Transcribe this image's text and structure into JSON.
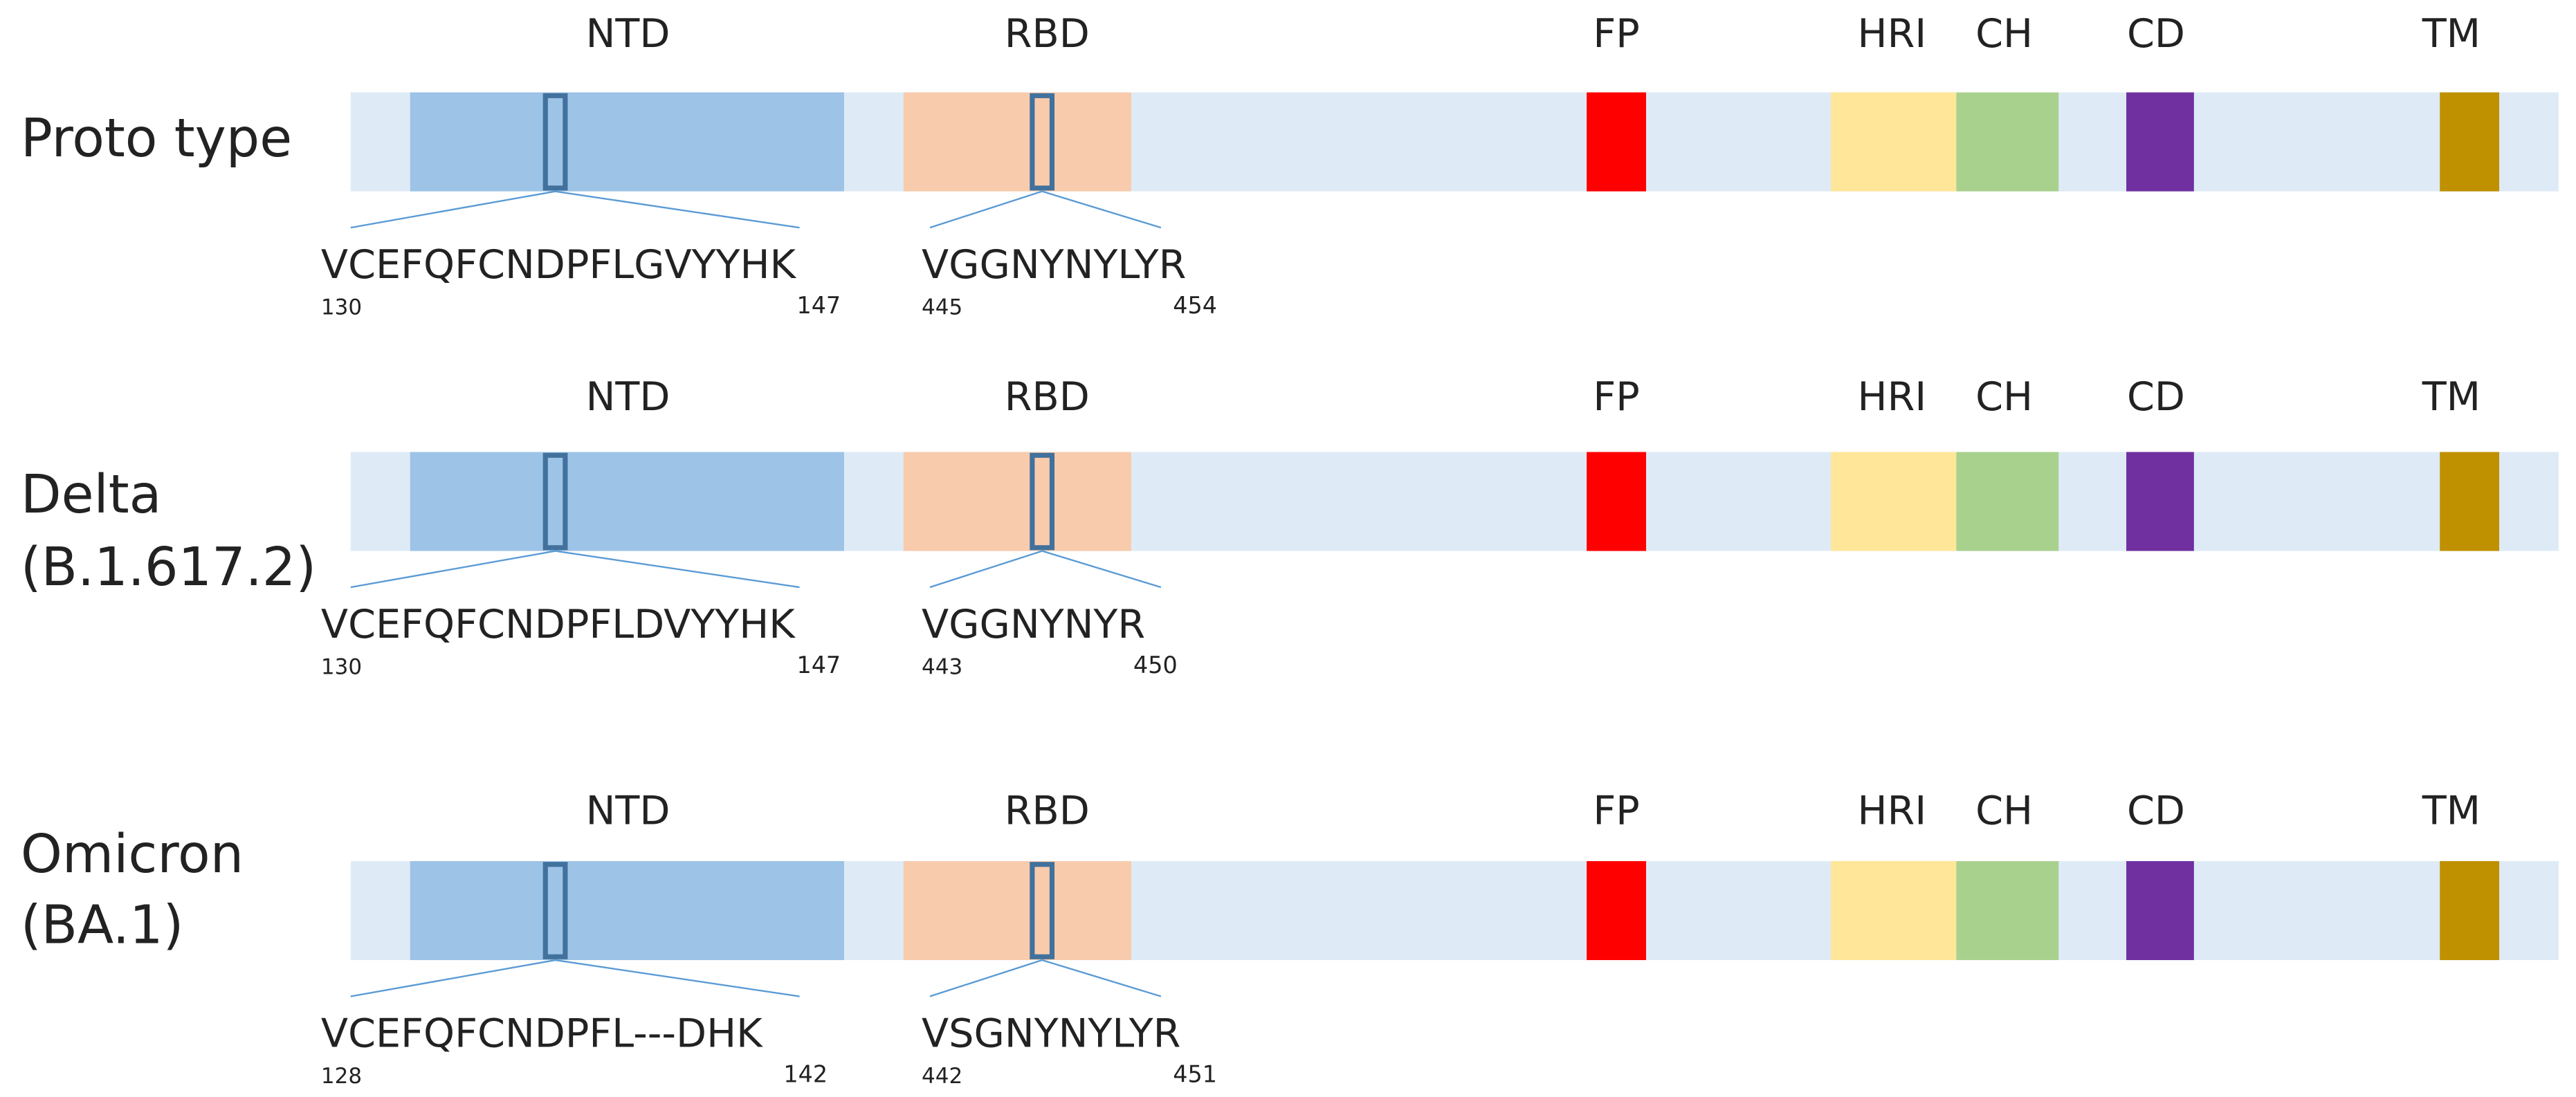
{
  "domains": [
    {
      "label": "NTD"
    },
    {
      "label": "RBD"
    },
    {
      "label": "FP"
    },
    {
      "label": "HRI"
    },
    {
      "label": "CH"
    },
    {
      "label": "CD"
    },
    {
      "label": "TM"
    }
  ],
  "variants": [
    {
      "name": [
        "Proto type"
      ],
      "ntd": {
        "sequence": "VCEFQFCNDPFLGVYYHK",
        "start": 130,
        "end": 147
      },
      "rbd": {
        "sequence": "VGGNYNYLYR",
        "start": 445,
        "end": 454
      }
    },
    {
      "name": [
        "Delta",
        "(B.1.617.2)"
      ],
      "ntd": {
        "sequence": "VCEFQFCNDPFLDVYYHK",
        "start": 130,
        "end": 147
      },
      "rbd": {
        "sequence": "VGGNYNYR",
        "start": 443,
        "end": 450
      }
    },
    {
      "name": [
        "Omicron",
        "(BA.1)"
      ],
      "ntd": {
        "sequence": "VCEFQFCNDPFL---DHK",
        "start": 128,
        "end": 142
      },
      "rbd": {
        "sequence": "VSGNYNYLYR",
        "start": 442,
        "end": 451
      }
    }
  ]
}
